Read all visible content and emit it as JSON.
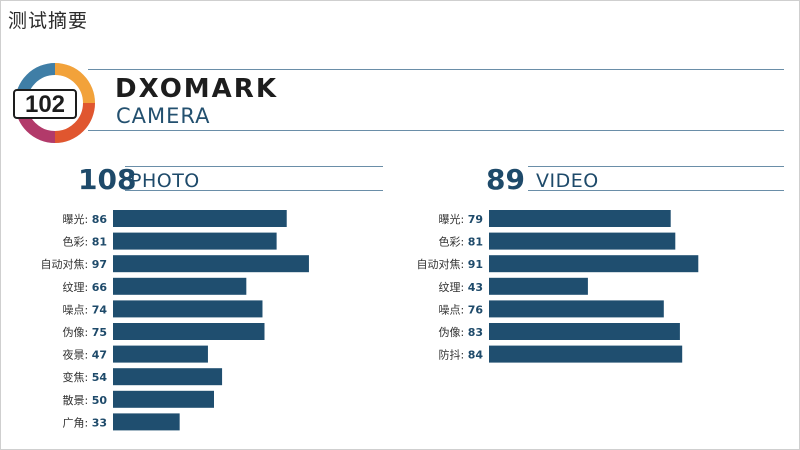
{
  "page": {
    "title": "测试摘要"
  },
  "badge": {
    "score": "102"
  },
  "brand": {
    "name": "DXOMARK",
    "category": "CAMERA"
  },
  "colors": {
    "bar": "#1f4e6f",
    "accent": "#1e4a6a",
    "rule": "#6a8ea8"
  },
  "chart_data": [
    {
      "type": "bar",
      "orientation": "horizontal",
      "title": "PHOTO",
      "score": "108",
      "categories": [
        "曝光",
        "色彩",
        "自动对焦",
        "纹理",
        "噪点",
        "伪像",
        "夜景",
        "变焦",
        "散景",
        "广角"
      ],
      "values": [
        86,
        81,
        97,
        66,
        74,
        75,
        47,
        54,
        50,
        33
      ],
      "xlim": [
        0,
        100
      ],
      "grid": false
    },
    {
      "type": "bar",
      "orientation": "horizontal",
      "title": "VIDEO",
      "score": "89",
      "categories": [
        "曝光",
        "色彩",
        "自动对焦",
        "纹理",
        "噪点",
        "伪像",
        "防抖"
      ],
      "values": [
        79,
        81,
        91,
        43,
        76,
        83,
        84
      ],
      "xlim": [
        0,
        100
      ],
      "grid": false
    }
  ]
}
